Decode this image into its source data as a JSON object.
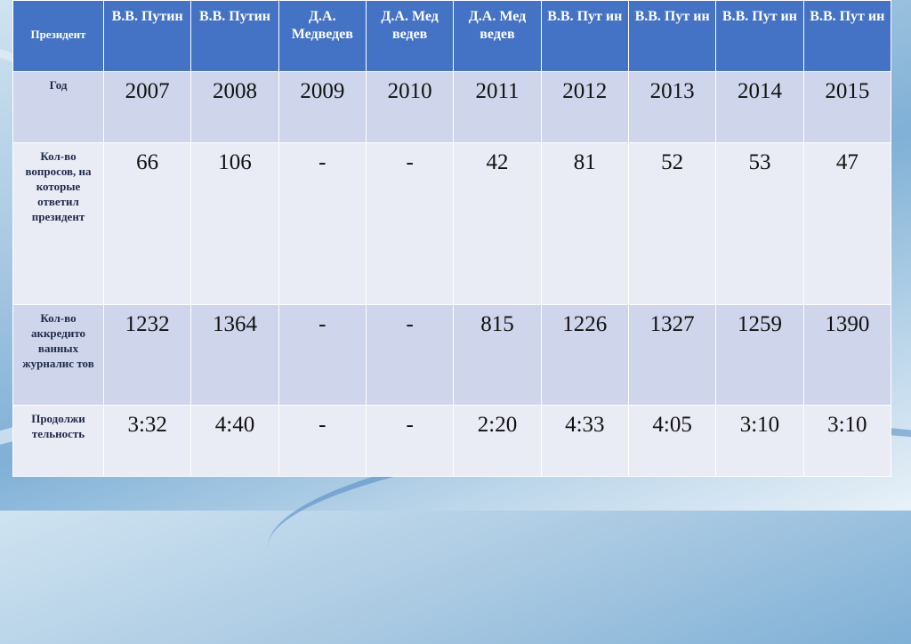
{
  "table": {
    "header": {
      "label": "Президент",
      "cols": [
        "В.В. Путин",
        "В.В. Путин",
        "Д.А. Медведев",
        "Д.А. Мед ведев",
        "Д.А. Мед ведев",
        "В.В. Пут ин",
        "В.В. Пут ин",
        "В.В. Пут ин",
        "В.В. Пут ин"
      ]
    },
    "rows": [
      {
        "label": "Год",
        "values": [
          "2007",
          "2008",
          "2009",
          "2010",
          "2011",
          "2012",
          "2013",
          "2014",
          "2015"
        ]
      },
      {
        "label": "Кол-во вопросов, на которые ответил президент",
        "values": [
          "66",
          "106",
          "-",
          "-",
          "42",
          "81",
          "52",
          "53",
          "47"
        ]
      },
      {
        "label": "Кол-во аккредито ванных журналис тов",
        "values": [
          "1232",
          "1364",
          "-",
          "-",
          "815",
          "1226",
          "1327",
          "1259",
          "1390"
        ]
      },
      {
        "label": "Продолжи тельность",
        "values": [
          "3:32",
          "4:40",
          "-",
          "-",
          "2:20",
          "4:33",
          "4:05",
          "3:10",
          "3:10"
        ]
      }
    ]
  }
}
